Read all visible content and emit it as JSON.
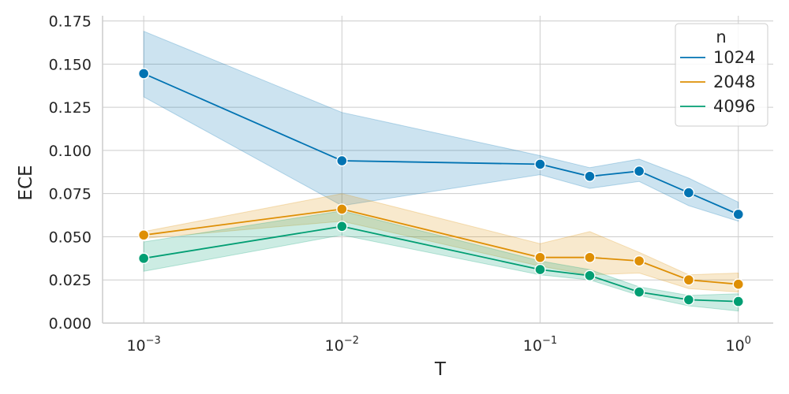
{
  "chart_data": {
    "type": "line",
    "xlabel": "T",
    "ylabel": "ECE",
    "xscale": "log",
    "xlim": [
      0.00062,
      1.5
    ],
    "ylim": [
      0,
      0.178
    ],
    "grid": true,
    "x_ticks": [
      {
        "value": 0.001,
        "base": "10",
        "exp": "−3"
      },
      {
        "value": 0.01,
        "base": "10",
        "exp": "−2"
      },
      {
        "value": 0.1,
        "base": "10",
        "exp": "−1"
      },
      {
        "value": 1,
        "base": "10",
        "exp": "0"
      }
    ],
    "y_ticks": [
      {
        "value": 0,
        "label": "0.000"
      },
      {
        "value": 0.025,
        "label": "0.025"
      },
      {
        "value": 0.05,
        "label": "0.050"
      },
      {
        "value": 0.075,
        "label": "0.075"
      },
      {
        "value": 0.1,
        "label": "0.100"
      },
      {
        "value": 0.125,
        "label": "0.125"
      },
      {
        "value": 0.15,
        "label": "0.150"
      },
      {
        "value": 0.175,
        "label": "0.175"
      }
    ],
    "legend": {
      "title": "n",
      "placement": "top-right"
    },
    "x": [
      0.001,
      0.01,
      0.1,
      0.178,
      0.316,
      0.562,
      1.0
    ],
    "series": [
      {
        "name": "1024",
        "color": "#0173b2",
        "values": [
          0.1445,
          0.094,
          0.092,
          0.085,
          0.088,
          0.0755,
          0.063
        ],
        "lower": [
          0.131,
          0.068,
          0.086,
          0.078,
          0.082,
          0.068,
          0.059
        ],
        "upper": [
          0.169,
          0.122,
          0.097,
          0.09,
          0.095,
          0.084,
          0.07
        ]
      },
      {
        "name": "2048",
        "color": "#de8f05",
        "values": [
          0.051,
          0.066,
          0.038,
          0.038,
          0.036,
          0.025,
          0.0225
        ],
        "lower": [
          0.049,
          0.059,
          0.033,
          0.028,
          0.029,
          0.02,
          0.018
        ],
        "upper": [
          0.053,
          0.075,
          0.046,
          0.053,
          0.041,
          0.028,
          0.029
        ]
      },
      {
        "name": "4096",
        "color": "#029e73",
        "values": [
          0.0375,
          0.056,
          0.031,
          0.0275,
          0.018,
          0.0135,
          0.0125
        ],
        "lower": [
          0.03,
          0.051,
          0.028,
          0.025,
          0.016,
          0.01,
          0.007
        ],
        "upper": [
          0.047,
          0.065,
          0.036,
          0.031,
          0.021,
          0.016,
          0.017
        ]
      }
    ]
  }
}
